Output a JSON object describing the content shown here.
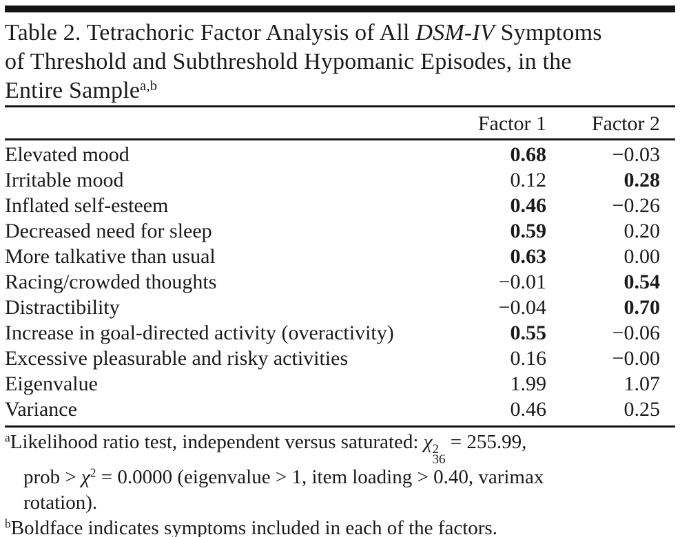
{
  "page": {
    "background": "#ffffff",
    "text_color": "#1a1a1a",
    "rule_color": "#141414"
  },
  "title": {
    "line1_prefix": "Table 2. Tetrachoric Factor Analysis of All ",
    "line1_italic": "DSM-IV",
    "line1_suffix": " Symptoms",
    "line2": "of Threshold and Subthreshold Hypomanic Episodes, in the",
    "line3": "Entire Sample",
    "superscript": "a,b"
  },
  "table": {
    "columns": [
      {
        "label": "Factor 1"
      },
      {
        "label": "Factor 2"
      }
    ],
    "rows": [
      {
        "label": "Elevated mood",
        "factor1": "0.68",
        "factor1_bold": true,
        "factor2": "−0.03",
        "factor2_bold": false
      },
      {
        "label": "Irritable mood",
        "factor1": "0.12",
        "factor1_bold": false,
        "factor2": "0.28",
        "factor2_bold": true
      },
      {
        "label": "Inflated self-esteem",
        "factor1": "0.46",
        "factor1_bold": true,
        "factor2": "−0.26",
        "factor2_bold": false
      },
      {
        "label": "Decreased need for sleep",
        "factor1": "0.59",
        "factor1_bold": true,
        "factor2": "0.20",
        "factor2_bold": false
      },
      {
        "label": "More talkative than usual",
        "factor1": "0.63",
        "factor1_bold": true,
        "factor2": "0.00",
        "factor2_bold": false
      },
      {
        "label": "Racing/crowded thoughts",
        "factor1": "−0.01",
        "factor1_bold": false,
        "factor2": "0.54",
        "factor2_bold": true
      },
      {
        "label": "Distractibility",
        "factor1": "−0.04",
        "factor1_bold": false,
        "factor2": "0.70",
        "factor2_bold": true
      },
      {
        "label": "Increase in goal-directed activity (overactivity)",
        "factor1": "0.55",
        "factor1_bold": true,
        "factor2": "−0.06",
        "factor2_bold": false
      },
      {
        "label": "Excessive pleasurable and risky activities",
        "factor1": "0.16",
        "factor1_bold": false,
        "factor2": "−0.00",
        "factor2_bold": false
      },
      {
        "label": "Eigenvalue",
        "factor1": "1.99",
        "factor1_bold": false,
        "factor2": "1.07",
        "factor2_bold": false
      },
      {
        "label": "Variance",
        "factor1": "0.46",
        "factor1_bold": false,
        "factor2": "0.25",
        "factor2_bold": false
      }
    ]
  },
  "footnotes": {
    "a": {
      "marker": "a",
      "line1_text": "Likelihood ratio test, independent versus saturated: ",
      "chi_symbol": "χ",
      "chi_superscript": "2",
      "chi_subscript": "36",
      "line1_end": " = 255.99,",
      "line2_start": "prob > ",
      "chi2_symbol": "χ",
      "chi2_superscript": "2",
      "line2_end": " = 0.0000 (eigenvalue > 1, item loading > 0.40, varimax",
      "line3": "rotation)."
    },
    "b": {
      "marker": "b",
      "text": "Boldface indicates symptoms included in each of the factors."
    }
  }
}
